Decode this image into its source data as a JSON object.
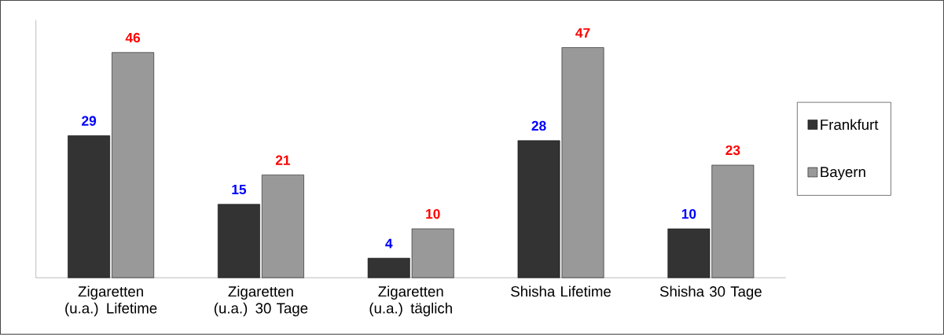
{
  "chart_data": {
    "type": "bar",
    "categories": [
      "Zigaretten (u.a.) Lifetime",
      "Zigaretten (u.a.) 30 Tage",
      "Zigaretten (u.a.) täglich",
      "Shisha Lifetime",
      "Shisha 30 Tage"
    ],
    "series": [
      {
        "name": "Frankfurt",
        "color": "#333333",
        "values": [
          29,
          15,
          4,
          28,
          10
        ]
      },
      {
        "name": "Bayern",
        "color": "#999999",
        "values": [
          46,
          21,
          10,
          47,
          23
        ]
      }
    ],
    "data_labels": true,
    "legend": "right"
  }
}
